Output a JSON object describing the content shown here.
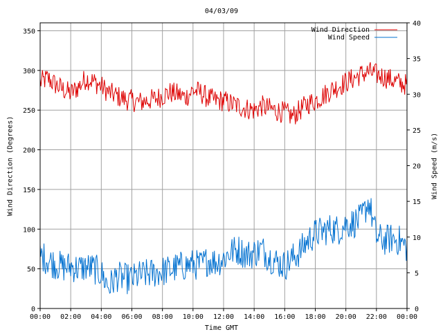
{
  "chart_data": {
    "type": "line",
    "title": "04/03/09",
    "xlabel": "Time GMT",
    "ylabel_left": "Wind Direction (Degrees)",
    "ylabel_right": "Wind Speed (m/s)",
    "x_tick_labels": [
      "00:00",
      "02:00",
      "04:00",
      "06:00",
      "08:00",
      "10:00",
      "12:00",
      "14:00",
      "16:00",
      "18:00",
      "20:00",
      "22:00",
      "00:00"
    ],
    "x_range_hours": [
      0,
      24
    ],
    "y_left_ticks": [
      0,
      50,
      100,
      150,
      200,
      250,
      300,
      350
    ],
    "y_left_range": [
      0,
      360
    ],
    "y_right_ticks": [
      0,
      5,
      10,
      15,
      20,
      25,
      30,
      35,
      40
    ],
    "y_right_range": [
      0,
      40
    ],
    "grid": true,
    "legend_position": "top-right",
    "series": [
      {
        "name": "Wind Direction",
        "axis": "left",
        "color": "#dd0000",
        "x_hours": [
          0,
          0.5,
          1,
          1.5,
          2,
          2.5,
          3,
          3.5,
          4,
          4.5,
          5,
          5.5,
          6,
          6.5,
          7,
          7.5,
          8,
          8.5,
          9,
          9.5,
          10,
          10.5,
          11,
          11.5,
          12,
          12.5,
          13,
          13.5,
          14,
          14.5,
          15,
          15.5,
          16,
          16.5,
          17,
          17.5,
          18,
          18.5,
          19,
          19.5,
          20,
          20.5,
          21,
          21.5,
          22,
          22.5,
          23,
          23.5,
          24
        ],
        "values": [
          285,
          290,
          282,
          276,
          271,
          279,
          290,
          286,
          280,
          272,
          268,
          264,
          262,
          260,
          262,
          264,
          268,
          272,
          270,
          266,
          275,
          272,
          265,
          262,
          262,
          258,
          255,
          252,
          250,
          255,
          252,
          249,
          247,
          242,
          250,
          258,
          262,
          268,
          275,
          280,
          285,
          290,
          295,
          298,
          295,
          292,
          288,
          284,
          282
        ]
      },
      {
        "name": "Wind Speed",
        "axis": "right",
        "color": "#0070d0",
        "x_hours": [
          0,
          0.5,
          1,
          1.5,
          2,
          2.5,
          3,
          3.5,
          4,
          4.5,
          5,
          5.5,
          6,
          6.5,
          7,
          7.5,
          8,
          8.5,
          9,
          9.5,
          10,
          10.5,
          11,
          11.5,
          12,
          12.5,
          13,
          13.5,
          14,
          14.5,
          15,
          15.5,
          16,
          16.5,
          17,
          17.5,
          18,
          18.5,
          19,
          19.5,
          20,
          20.5,
          21,
          21.5,
          22,
          22.5,
          23,
          23.5,
          24
        ],
        "values": [
          7.5,
          6.8,
          6.2,
          5.8,
          5.9,
          5.6,
          5.8,
          5.6,
          4.9,
          3.0,
          4.5,
          4.2,
          4.1,
          4.6,
          4.8,
          5.0,
          5.2,
          5.4,
          5.8,
          6.0,
          6.2,
          6.0,
          6.8,
          6.5,
          7.0,
          8.0,
          8.2,
          7.5,
          7.8,
          8.3,
          7.2,
          6.5,
          6.0,
          7.0,
          8.0,
          9.5,
          10.5,
          10.8,
          11.2,
          11.0,
          11.8,
          12.0,
          12.5,
          15.0,
          10.0,
          9.5,
          9.8,
          9.5,
          8.5
        ]
      }
    ]
  }
}
